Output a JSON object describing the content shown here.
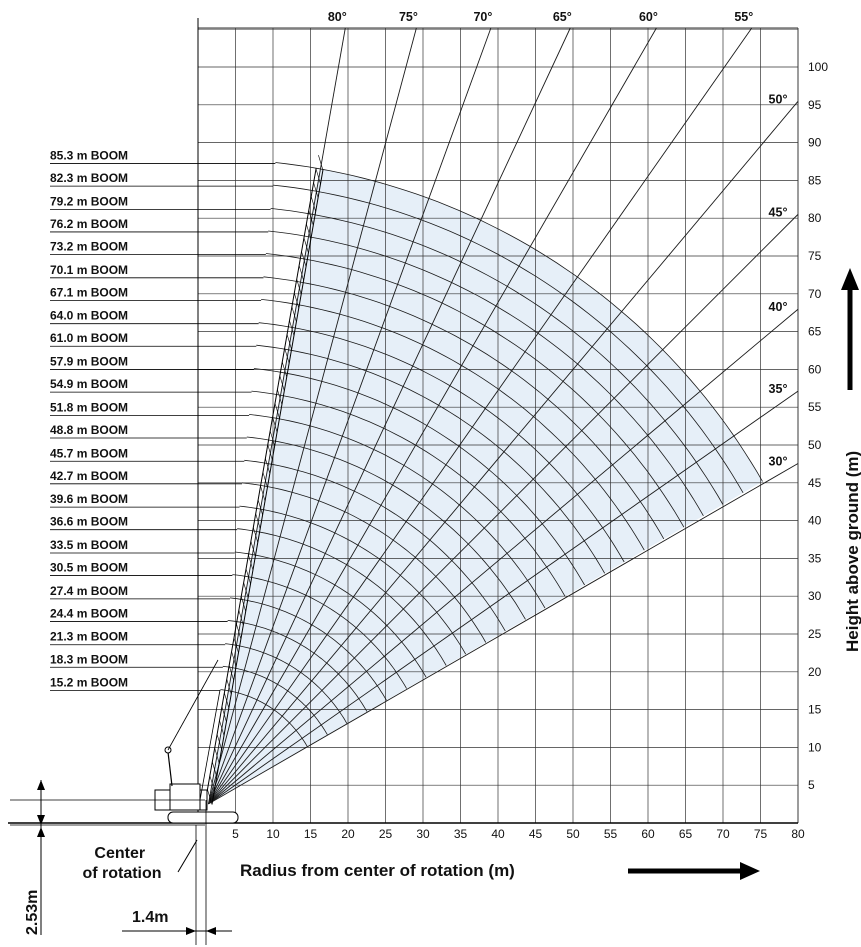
{
  "chart_data": {
    "type": "range-diagram",
    "xlabel": "Radius from center of rotation (m)",
    "ylabel": "Height above ground (m)",
    "xlim": [
      0,
      80
    ],
    "ylim": [
      0,
      105
    ],
    "xticks": [
      5,
      10,
      15,
      20,
      25,
      30,
      35,
      40,
      45,
      50,
      55,
      60,
      65,
      70,
      75,
      80
    ],
    "yticks": [
      5,
      10,
      15,
      20,
      25,
      30,
      35,
      40,
      45,
      50,
      55,
      60,
      65,
      70,
      75,
      80,
      85,
      90,
      95,
      100
    ],
    "boom_angles": [
      80,
      75,
      70,
      65,
      60,
      55,
      50,
      45,
      40,
      35,
      30
    ],
    "angle_labels": [
      "80°",
      "75°",
      "70°",
      "65°",
      "60°",
      "55°",
      "50°",
      "45°",
      "40°",
      "35°",
      "30°"
    ],
    "boom_lengths_m": [
      85.3,
      82.3,
      79.2,
      76.2,
      73.2,
      70.1,
      67.1,
      64.0,
      61.0,
      57.9,
      54.9,
      51.8,
      48.8,
      45.7,
      42.7,
      39.6,
      36.6,
      33.5,
      30.5,
      27.4,
      24.4,
      21.3,
      18.3,
      15.2
    ],
    "boom_labels": [
      "85.3 m BOOM",
      "82.3 m BOOM",
      "79.2 m BOOM",
      "76.2 m BOOM",
      "73.2 m BOOM",
      "70.1 m BOOM",
      "67.1 m BOOM",
      "64.0 m BOOM",
      "61.0 m BOOM",
      "57.9 m BOOM",
      "54.9 m BOOM",
      "51.8 m BOOM",
      "48.8 m BOOM",
      "45.7 m BOOM",
      "42.7 m BOOM",
      "39.6 m BOOM",
      "36.6 m BOOM",
      "33.5 m BOOM",
      "30.5 m BOOM",
      "27.4 m BOOM",
      "24.4 m BOOM",
      "21.3 m BOOM",
      "18.3 m BOOM",
      "15.2 m BOOM"
    ],
    "pivot_height_m": 2.53,
    "pivot_offset_m": 1.4,
    "colors": {
      "shade": "#e6eff8",
      "lines": "#1a1a1a",
      "grid": "#333333"
    }
  },
  "annotations": {
    "center_of_rotation": "Center\nof rotation",
    "height_dim": "2.53m",
    "offset_dim": "1.4m"
  }
}
